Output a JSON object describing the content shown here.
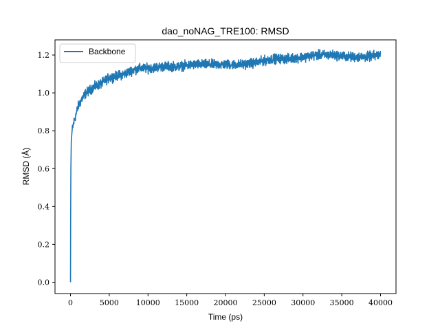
{
  "chart_data": {
    "type": "line",
    "title": "dao_noNAG_TRE100: RMSD",
    "xlabel": "Time (ps)",
    "ylabel": "RMSD (Å)",
    "xlim": [
      -2000,
      42000
    ],
    "ylim": [
      -0.06,
      1.28
    ],
    "xticks": [
      0,
      5000,
      10000,
      15000,
      20000,
      25000,
      30000,
      35000,
      40000
    ],
    "yticks": [
      0.0,
      0.2,
      0.4,
      0.6,
      0.8,
      1.0,
      1.2
    ],
    "xtick_labels": [
      "0",
      "5000",
      "10000",
      "15000",
      "20000",
      "25000",
      "30000",
      "35000",
      "40000"
    ],
    "ytick_labels": [
      "0.0",
      "0.2",
      "0.4",
      "0.6",
      "0.8",
      "1.0",
      "1.2"
    ],
    "legend": {
      "position": "upper-left",
      "entries": [
        "Backbone"
      ]
    },
    "grid": false,
    "series": [
      {
        "name": "Backbone",
        "color": "#1f77b4",
        "noise": 0.012,
        "points": [
          [
            0,
            0.0
          ],
          [
            20,
            0.35
          ],
          [
            50,
            0.6
          ],
          [
            100,
            0.74
          ],
          [
            200,
            0.8
          ],
          [
            400,
            0.84
          ],
          [
            600,
            0.87
          ],
          [
            800,
            0.9
          ],
          [
            1000,
            0.93
          ],
          [
            1500,
            0.97
          ],
          [
            2000,
            1.0
          ],
          [
            3000,
            1.03
          ],
          [
            4000,
            1.05
          ],
          [
            5000,
            1.08
          ],
          [
            6000,
            1.09
          ],
          [
            7000,
            1.1
          ],
          [
            8000,
            1.12
          ],
          [
            9000,
            1.13
          ],
          [
            10000,
            1.13
          ],
          [
            12000,
            1.14
          ],
          [
            14000,
            1.14
          ],
          [
            16000,
            1.15
          ],
          [
            18000,
            1.15
          ],
          [
            20000,
            1.15
          ],
          [
            22000,
            1.15
          ],
          [
            24000,
            1.16
          ],
          [
            26000,
            1.18
          ],
          [
            28000,
            1.18
          ],
          [
            30000,
            1.19
          ],
          [
            32000,
            1.2
          ],
          [
            34000,
            1.2
          ],
          [
            36000,
            1.19
          ],
          [
            38000,
            1.19
          ],
          [
            40000,
            1.2
          ]
        ]
      }
    ]
  }
}
